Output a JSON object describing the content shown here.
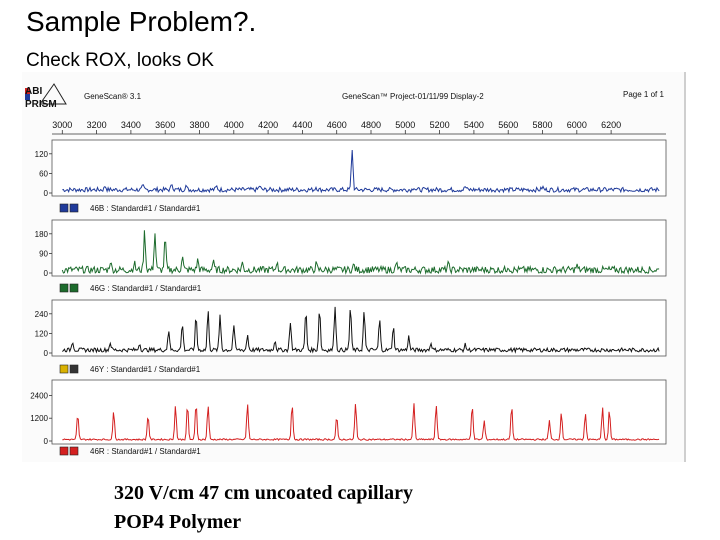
{
  "slide": {
    "title": "Sample Problem?.",
    "subtitle": "Check ROX, looks OK",
    "caption_line1": "320 V/cm  47 cm uncoated capillary",
    "caption_line2": "POP4 Polymer"
  },
  "header": {
    "logo_line1": "ABI",
    "logo_line2": "PRISM",
    "app_name": "GeneScan® 3.1",
    "project": "GeneScan™ Project-01/11/99 Display-2",
    "page": "Page 1 of 1"
  },
  "chart_data": {
    "type": "line",
    "x_ticks": [
      3000,
      3200,
      3400,
      3600,
      3800,
      4000,
      4200,
      4400,
      4600,
      4800,
      5000,
      5200,
      5400,
      5600,
      5800,
      6000,
      6200
    ],
    "xlim": [
      2940,
      6520
    ],
    "panels": [
      {
        "name": "46B : Standard#1 / Standard#1",
        "color": "#1f3a9a",
        "swatch_colors": [
          "#1f3a9a",
          "#1f3a9a"
        ],
        "y_ticks": [
          "120",
          "60",
          "0"
        ],
        "ylim": [
          0,
          150
        ],
        "baseline": 10,
        "noise": 7,
        "peaks": [
          [
            3250,
            12
          ],
          [
            3470,
            10
          ],
          [
            3640,
            18
          ],
          [
            3720,
            13
          ],
          [
            3900,
            10
          ],
          [
            4150,
            12
          ],
          [
            4480,
            9
          ],
          [
            4690,
            125
          ],
          [
            5050,
            9
          ],
          [
            5350,
            10
          ],
          [
            5800,
            8
          ]
        ]
      },
      {
        "name": "46G : Standard#1 / Standard#1",
        "color": "#1c6b2c",
        "swatch_colors": [
          "#1c6b2c",
          "#1c6b2c"
        ],
        "y_ticks": [
          "180",
          "90",
          "0"
        ],
        "ylim": [
          0,
          220
        ],
        "baseline": 14,
        "noise": 16,
        "peaks": [
          [
            3280,
            40
          ],
          [
            3420,
            30
          ],
          [
            3480,
            175
          ],
          [
            3540,
            165
          ],
          [
            3600,
            140
          ],
          [
            3700,
            60
          ],
          [
            3790,
            45
          ],
          [
            3880,
            35
          ],
          [
            4050,
            30
          ],
          [
            4250,
            35
          ],
          [
            4480,
            25
          ],
          [
            4700,
            22
          ],
          [
            4950,
            28
          ],
          [
            5250,
            25
          ],
          [
            5600,
            20
          ],
          [
            6000,
            18
          ]
        ]
      },
      {
        "name": "46Y : Standard#1 / Standard#1",
        "color": "#111111",
        "swatch_colors": [
          "#d9b100",
          "#333333"
        ],
        "y_ticks": [
          "240",
          "120",
          "0"
        ],
        "ylim": [
          0,
          290
        ],
        "baseline": 18,
        "noise": 12,
        "peaks": [
          [
            3060,
            55
          ],
          [
            3280,
            45
          ],
          [
            3450,
            40
          ],
          [
            3620,
            120
          ],
          [
            3700,
            160
          ],
          [
            3780,
            200
          ],
          [
            3850,
            230
          ],
          [
            3920,
            210
          ],
          [
            4000,
            150
          ],
          [
            4080,
            90
          ],
          [
            4240,
            60
          ],
          [
            4330,
            170
          ],
          [
            4420,
            230
          ],
          [
            4500,
            250
          ],
          [
            4590,
            270
          ],
          [
            4680,
            260
          ],
          [
            4760,
            230
          ],
          [
            4850,
            180
          ],
          [
            4930,
            140
          ],
          [
            5020,
            80
          ],
          [
            5150,
            45
          ],
          [
            5350,
            30
          ]
        ]
      },
      {
        "name": "46R : Standard#1 / Standard#1",
        "color": "#d42020",
        "swatch_colors": [
          "#d42020",
          "#d42020"
        ],
        "y_ticks": [
          "2400",
          "1200",
          "0"
        ],
        "ylim": [
          0,
          3000
        ],
        "baseline": 80,
        "noise": 40,
        "peaks": [
          [
            3090,
            1300
          ],
          [
            3300,
            1500
          ],
          [
            3500,
            1300
          ],
          [
            3660,
            1800
          ],
          [
            3730,
            1800
          ],
          [
            3780,
            1900
          ],
          [
            3850,
            1800
          ],
          [
            4080,
            1900
          ],
          [
            4340,
            1900
          ],
          [
            4600,
            1200
          ],
          [
            4710,
            1900
          ],
          [
            5050,
            1900
          ],
          [
            5180,
            1850
          ],
          [
            5390,
            1850
          ],
          [
            5460,
            1000
          ],
          [
            5620,
            1750
          ],
          [
            5840,
            1000
          ],
          [
            5910,
            1400
          ],
          [
            6050,
            1400
          ],
          [
            6150,
            1700
          ],
          [
            6190,
            1550
          ]
        ]
      }
    ]
  }
}
